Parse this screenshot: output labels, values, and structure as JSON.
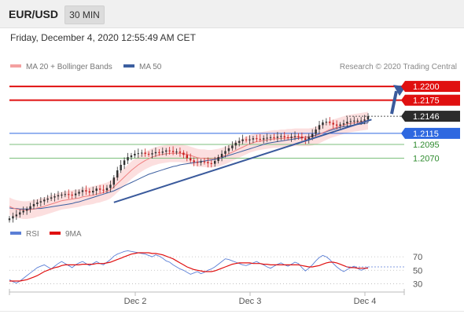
{
  "header": {
    "symbol": "EUR/USD",
    "timeframe": "30 MIN"
  },
  "datetime": "Friday, December 4, 2020 12:55:49 AM CET",
  "legend": {
    "ma20_label": "MA 20 + Bollinger Bands",
    "ma50_label": "MA 50",
    "credit": "Research © 2020 Trading Central"
  },
  "rsi_legend": {
    "rsi_label": "RSI",
    "ma_label": "9MA"
  },
  "colors": {
    "resistance": "#e01010",
    "support": "#2e68e0",
    "last": "#2b2b2b",
    "bands": "#fbd9d9",
    "ma20": "#f08080",
    "ma50": "#3c5fa0",
    "trendline": "#3a5a9c",
    "arrow": "#3a5a9c",
    "rsi": "#5b7fd6",
    "rsi_ma": "#e01010",
    "green_level": "#2e8b2e",
    "candle_up": "#2f2f2f",
    "candle_down": "#c82020"
  },
  "chart_data": [
    {
      "type": "candlestick",
      "title": "EUR/USD 30 MIN",
      "x_ticks": [
        "Dec 2",
        "Dec 3",
        "Dec 4"
      ],
      "ylim": [
        1.195,
        1.222
      ],
      "levels": [
        {
          "value": 1.22,
          "label": "1.2200",
          "kind": "resistance"
        },
        {
          "value": 1.2175,
          "label": "1.2175",
          "kind": "resistance"
        },
        {
          "value": 1.2146,
          "label": "1.2146",
          "kind": "last"
        },
        {
          "value": 1.2115,
          "label": "1.2115",
          "kind": "support"
        },
        {
          "value": 1.2095,
          "label": "1.2095",
          "kind": "support-minor"
        },
        {
          "value": 1.207,
          "label": "1.2070",
          "kind": "support-minor"
        }
      ],
      "close_series": [
        1.1961,
        1.1965,
        1.1968,
        1.1972,
        1.1975,
        1.1978,
        1.1983,
        1.1987,
        1.199,
        1.1992,
        1.1995,
        1.1997,
        1.1999,
        1.2001,
        1.2003,
        1.2004,
        1.2005,
        1.2004,
        1.2003,
        1.2006,
        1.2009,
        1.2012,
        1.201,
        1.2008,
        1.2011,
        1.2015,
        1.2013,
        1.2012,
        1.2016,
        1.2022,
        1.2035,
        1.2048,
        1.2058,
        1.2066,
        1.2072,
        1.2075,
        1.2078,
        1.2079,
        1.208,
        1.2078,
        1.2077,
        1.2079,
        1.2081,
        1.208,
        1.2082,
        1.2084,
        1.2083,
        1.2081,
        1.2082,
        1.208,
        1.2076,
        1.207,
        1.2066,
        1.2063,
        1.2062,
        1.2064,
        1.2063,
        1.2061,
        1.206,
        1.2065,
        1.2072,
        1.2078,
        1.2083,
        1.2088,
        1.2093,
        1.2098,
        1.2101,
        1.2104,
        1.2103,
        1.2104,
        1.2106,
        1.2105,
        1.2104,
        1.2106,
        1.2107,
        1.2108,
        1.2107,
        1.2109,
        1.211,
        1.2108,
        1.2107,
        1.2109,
        1.211,
        1.2109,
        1.2106,
        1.2103,
        1.2108,
        1.2114,
        1.2122,
        1.213,
        1.2135,
        1.2136,
        1.2134,
        1.2131,
        1.2129,
        1.2131,
        1.2133,
        1.2136,
        1.2137,
        1.2138,
        1.2138,
        1.2138,
        1.214,
        1.2146
      ],
      "ma20_series": [
        1.1983,
        1.198,
        1.1978,
        1.1977,
        1.1976,
        1.1976,
        1.1977,
        1.1978,
        1.198,
        1.1981,
        1.1983,
        1.1985,
        1.1987,
        1.1989,
        1.1991,
        1.1993,
        1.1994,
        1.1995,
        1.1996,
        1.1997,
        1.1998,
        1.2,
        1.2001,
        1.2002,
        1.2003,
        1.2005,
        1.2006,
        1.2008,
        1.201,
        1.2013,
        1.2018,
        1.2024,
        1.203,
        1.2036,
        1.2042,
        1.2048,
        1.2053,
        1.2058,
        1.2062,
        1.2066,
        1.2069,
        1.2072,
        1.2074,
        1.2076,
        1.2077,
        1.2078,
        1.2079,
        1.2079,
        1.2079,
        1.2079,
        1.2078,
        1.2077,
        1.2075,
        1.2073,
        1.2071,
        1.207,
        1.207,
        1.2069,
        1.2069,
        1.207,
        1.2071,
        1.2073,
        1.2075,
        1.2078,
        1.2081,
        1.2084,
        1.2087,
        1.209,
        1.2093,
        1.2096,
        1.2098,
        1.21,
        1.2101,
        1.2102,
        1.2103,
        1.2104,
        1.2105,
        1.2105,
        1.2106,
        1.2106,
        1.2107,
        1.2107,
        1.2108,
        1.2108,
        1.2108,
        1.2108,
        1.2108,
        1.2109,
        1.2111,
        1.2113,
        1.2116,
        1.2119,
        1.2122,
        1.2124,
        1.2126,
        1.2128,
        1.213,
        1.2132,
        1.2133,
        1.2134,
        1.2135,
        1.2136,
        1.2137,
        1.2138
      ],
      "ma50_series": [
        1.198,
        1.1979,
        1.1979,
        1.1978,
        1.1978,
        1.1978,
        1.1978,
        1.1978,
        1.1979,
        1.1979,
        1.198,
        1.1981,
        1.1982,
        1.1983,
        1.1984,
        1.1985,
        1.1986,
        1.1987,
        1.1988,
        1.199,
        1.1991,
        1.1993,
        1.1995,
        1.1997,
        1.1999,
        1.2001,
        1.2003,
        1.2005,
        1.2007,
        1.2009,
        1.2011,
        1.2014,
        1.2017,
        1.202,
        1.2023,
        1.2026,
        1.2029,
        1.2032,
        1.2035,
        1.2038,
        1.2041,
        1.2043,
        1.2045,
        1.2047,
        1.2049,
        1.2051,
        1.2053,
        1.2055,
        1.2056,
        1.2058,
        1.2059,
        1.206,
        1.2061,
        1.2062,
        1.2063,
        1.2064,
        1.2065,
        1.2066,
        1.2067,
        1.2068,
        1.2069,
        1.2071,
        1.2073,
        1.2075,
        1.2077,
        1.2079,
        1.2081,
        1.2083,
        1.2085,
        1.2087,
        1.2089,
        1.2091,
        1.2093,
        1.2095,
        1.2097,
        1.2098,
        1.2099,
        1.21,
        1.2101,
        1.2102,
        1.2103,
        1.2104,
        1.2105,
        1.2106,
        1.2107,
        1.2108,
        1.2109,
        1.211,
        1.2112,
        1.2114,
        1.2116,
        1.2118,
        1.212,
        1.2122,
        1.2124,
        1.2126,
        1.2127,
        1.2128,
        1.2129,
        1.213,
        1.2131,
        1.2132,
        1.2133,
        1.2134
      ],
      "band_width": 0.0016,
      "trendline": {
        "start": {
          "index": 30,
          "value": 1.199
        },
        "end": {
          "index": 104,
          "value": 1.214
        }
      },
      "forecast_arrow": {
        "from": 1.2146,
        "to": 1.22
      }
    },
    {
      "type": "line",
      "title": "RSI",
      "y_ticks": [
        70,
        50,
        30
      ],
      "ylim": [
        20,
        90
      ],
      "series": [
        {
          "name": "RSI",
          "values": [
            36,
            33,
            31,
            34,
            38,
            42,
            46,
            50,
            54,
            56,
            58,
            55,
            52,
            56,
            60,
            63,
            60,
            57,
            54,
            58,
            61,
            63,
            60,
            57,
            60,
            63,
            60,
            58,
            62,
            66,
            71,
            74,
            76,
            78,
            79,
            78,
            77,
            76,
            75,
            74,
            72,
            70,
            73,
            71,
            68,
            64,
            62,
            58,
            55,
            52,
            50,
            47,
            44,
            46,
            48,
            45,
            47,
            50,
            52,
            55,
            59,
            63,
            67,
            66,
            64,
            62,
            60,
            58,
            57,
            59,
            61,
            63,
            60,
            58,
            55,
            53,
            56,
            59,
            61,
            58,
            56,
            59,
            62,
            60,
            54,
            49,
            53,
            58,
            64,
            69,
            72,
            70,
            66,
            60,
            55,
            51,
            48,
            51,
            54,
            56,
            53,
            50,
            52,
            55
          ]
        },
        {
          "name": "9MA",
          "values": [
            34,
            34,
            34,
            34,
            35,
            36,
            38,
            40,
            42,
            45,
            48,
            50,
            52,
            54,
            55,
            57,
            58,
            58,
            58,
            58,
            58,
            59,
            59,
            59,
            59,
            60,
            60,
            60,
            61,
            62,
            64,
            66,
            68,
            70,
            72,
            74,
            75,
            76,
            76,
            76,
            76,
            75,
            75,
            74,
            73,
            71,
            69,
            67,
            64,
            61,
            58,
            55,
            53,
            51,
            50,
            49,
            48,
            48,
            48,
            49,
            51,
            53,
            55,
            57,
            59,
            60,
            61,
            61,
            61,
            61,
            60,
            60,
            60,
            59,
            59,
            58,
            58,
            58,
            58,
            58,
            58,
            58,
            58,
            58,
            57,
            56,
            55,
            55,
            56,
            57,
            59,
            61,
            62,
            62,
            61,
            59,
            57,
            55,
            54,
            54,
            53,
            53,
            53,
            53
          ]
        }
      ]
    }
  ]
}
